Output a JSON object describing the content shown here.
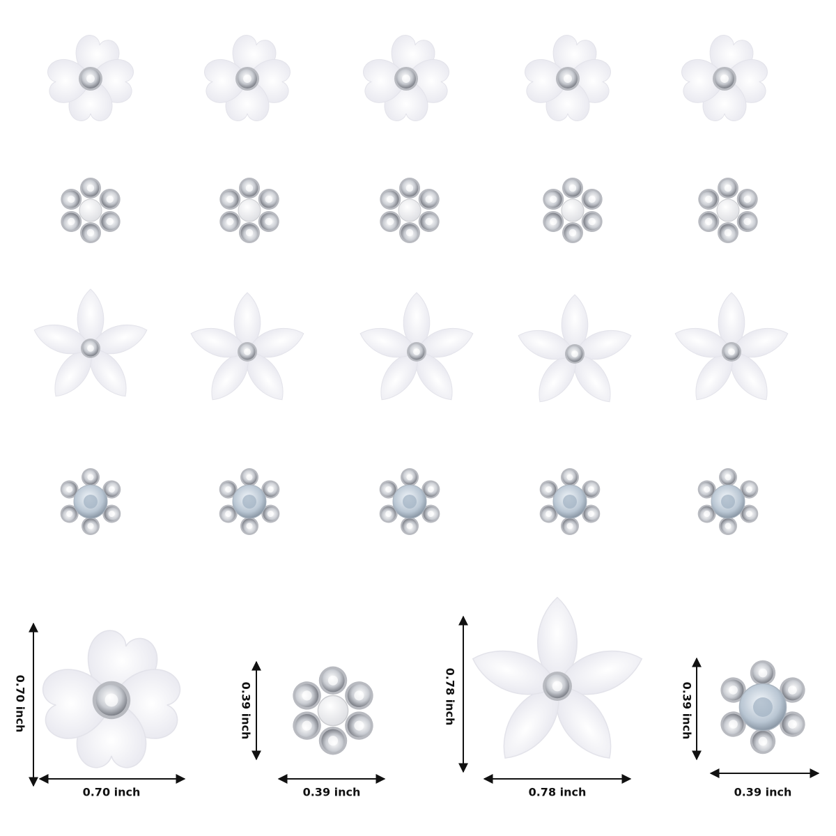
{
  "dimensions": [
    {
      "height": "0.70 inch",
      "width": "0.70 inch"
    },
    {
      "height": "0.39 inch",
      "width": "0.39 inch"
    },
    {
      "height": "0.78 inch",
      "width": "0.78 inch"
    },
    {
      "height": "0.39 inch",
      "width": "0.39 inch"
    }
  ]
}
